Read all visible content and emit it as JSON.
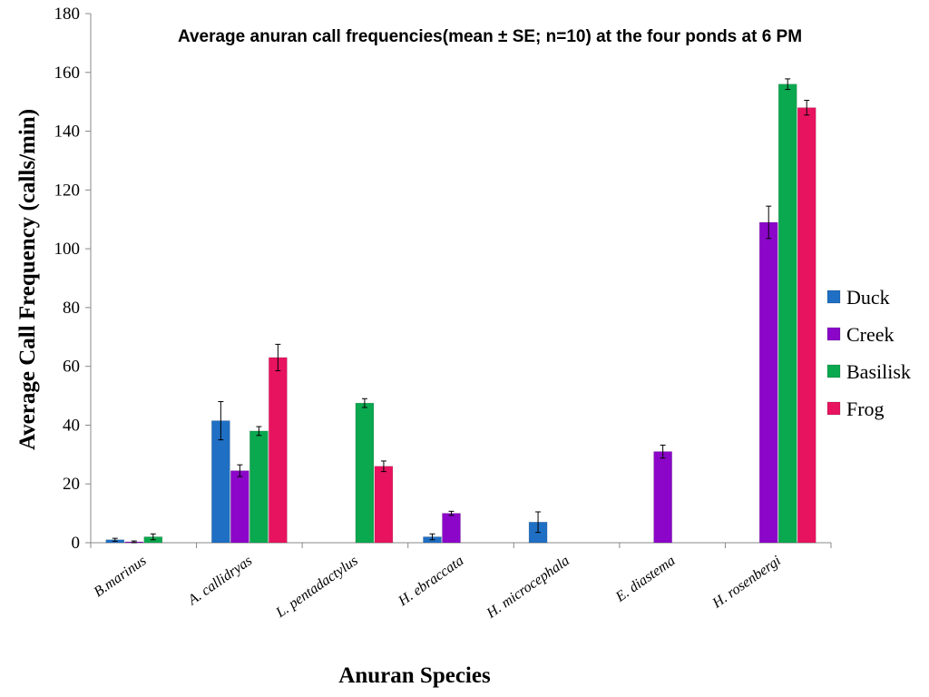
{
  "chart_data": {
    "type": "bar",
    "title": "Average anuran call frequencies(mean ± SE; n=10) at the four ponds at 6 PM",
    "xlabel": "Anuran Species",
    "ylabel": "Average Call Frequency (calls/min)",
    "ylim": [
      0,
      180
    ],
    "yticks": [
      0,
      20,
      40,
      60,
      80,
      100,
      120,
      140,
      160,
      180
    ],
    "grid": false,
    "legend_position": "right",
    "categories": [
      "B.marinus",
      "A. callidryas",
      "L. pentadactylus",
      "H. ebraccata",
      "H. microcephala",
      "E. diastema",
      "H. rosenbergi"
    ],
    "series": [
      {
        "name": "Duck",
        "color": "#1f6fc4",
        "values": [
          1,
          41.5,
          0,
          2,
          7,
          0,
          0
        ],
        "errors": [
          0.5,
          6.5,
          0,
          1,
          3.5,
          0,
          0
        ]
      },
      {
        "name": "Creek",
        "color": "#8b06c9",
        "values": [
          0.3,
          24.5,
          0,
          10,
          0,
          31,
          109
        ],
        "errors": [
          0.3,
          2,
          0,
          0.7,
          0,
          2.2,
          5.5
        ]
      },
      {
        "name": "Basilisk",
        "color": "#0aa84f",
        "values": [
          2,
          38,
          47.5,
          0,
          0,
          0,
          156
        ],
        "errors": [
          1,
          1.5,
          1.5,
          0,
          0,
          0,
          1.8
        ]
      },
      {
        "name": "Frog",
        "color": "#e8135f",
        "values": [
          0,
          63,
          26,
          0,
          0,
          0,
          148
        ],
        "errors": [
          0,
          4.5,
          1.8,
          0,
          0,
          0,
          2.5
        ]
      }
    ]
  }
}
